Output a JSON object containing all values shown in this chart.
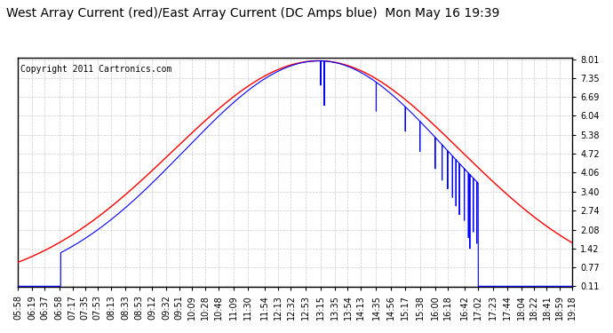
{
  "title": "West Array Current (red)/East Array Current (DC Amps blue)  Mon May 16 19:39",
  "copyright": "Copyright 2011 Cartronics.com",
  "yticks": [
    0.11,
    0.77,
    1.42,
    2.08,
    2.74,
    3.4,
    4.06,
    4.72,
    5.38,
    6.04,
    6.69,
    7.35,
    8.01
  ],
  "xtick_labels": [
    "05:58",
    "06:19",
    "06:37",
    "06:58",
    "07:17",
    "07:35",
    "07:53",
    "08:13",
    "08:33",
    "08:53",
    "09:12",
    "09:32",
    "09:51",
    "10:09",
    "10:28",
    "10:48",
    "11:09",
    "11:30",
    "11:54",
    "12:13",
    "12:32",
    "12:53",
    "13:15",
    "13:35",
    "13:54",
    "14:13",
    "14:35",
    "14:56",
    "15:17",
    "15:38",
    "16:00",
    "16:18",
    "16:42",
    "17:02",
    "17:23",
    "17:44",
    "18:04",
    "18:22",
    "18:41",
    "18:59",
    "19:18"
  ],
  "bg_color": "#ffffff",
  "grid_color": "#cccccc",
  "red_color": "#ff0000",
  "blue_color": "#0000ff",
  "title_fontsize": 10,
  "copyright_fontsize": 7,
  "tick_fontsize": 7,
  "ymin": 0.11,
  "ymax": 8.01
}
